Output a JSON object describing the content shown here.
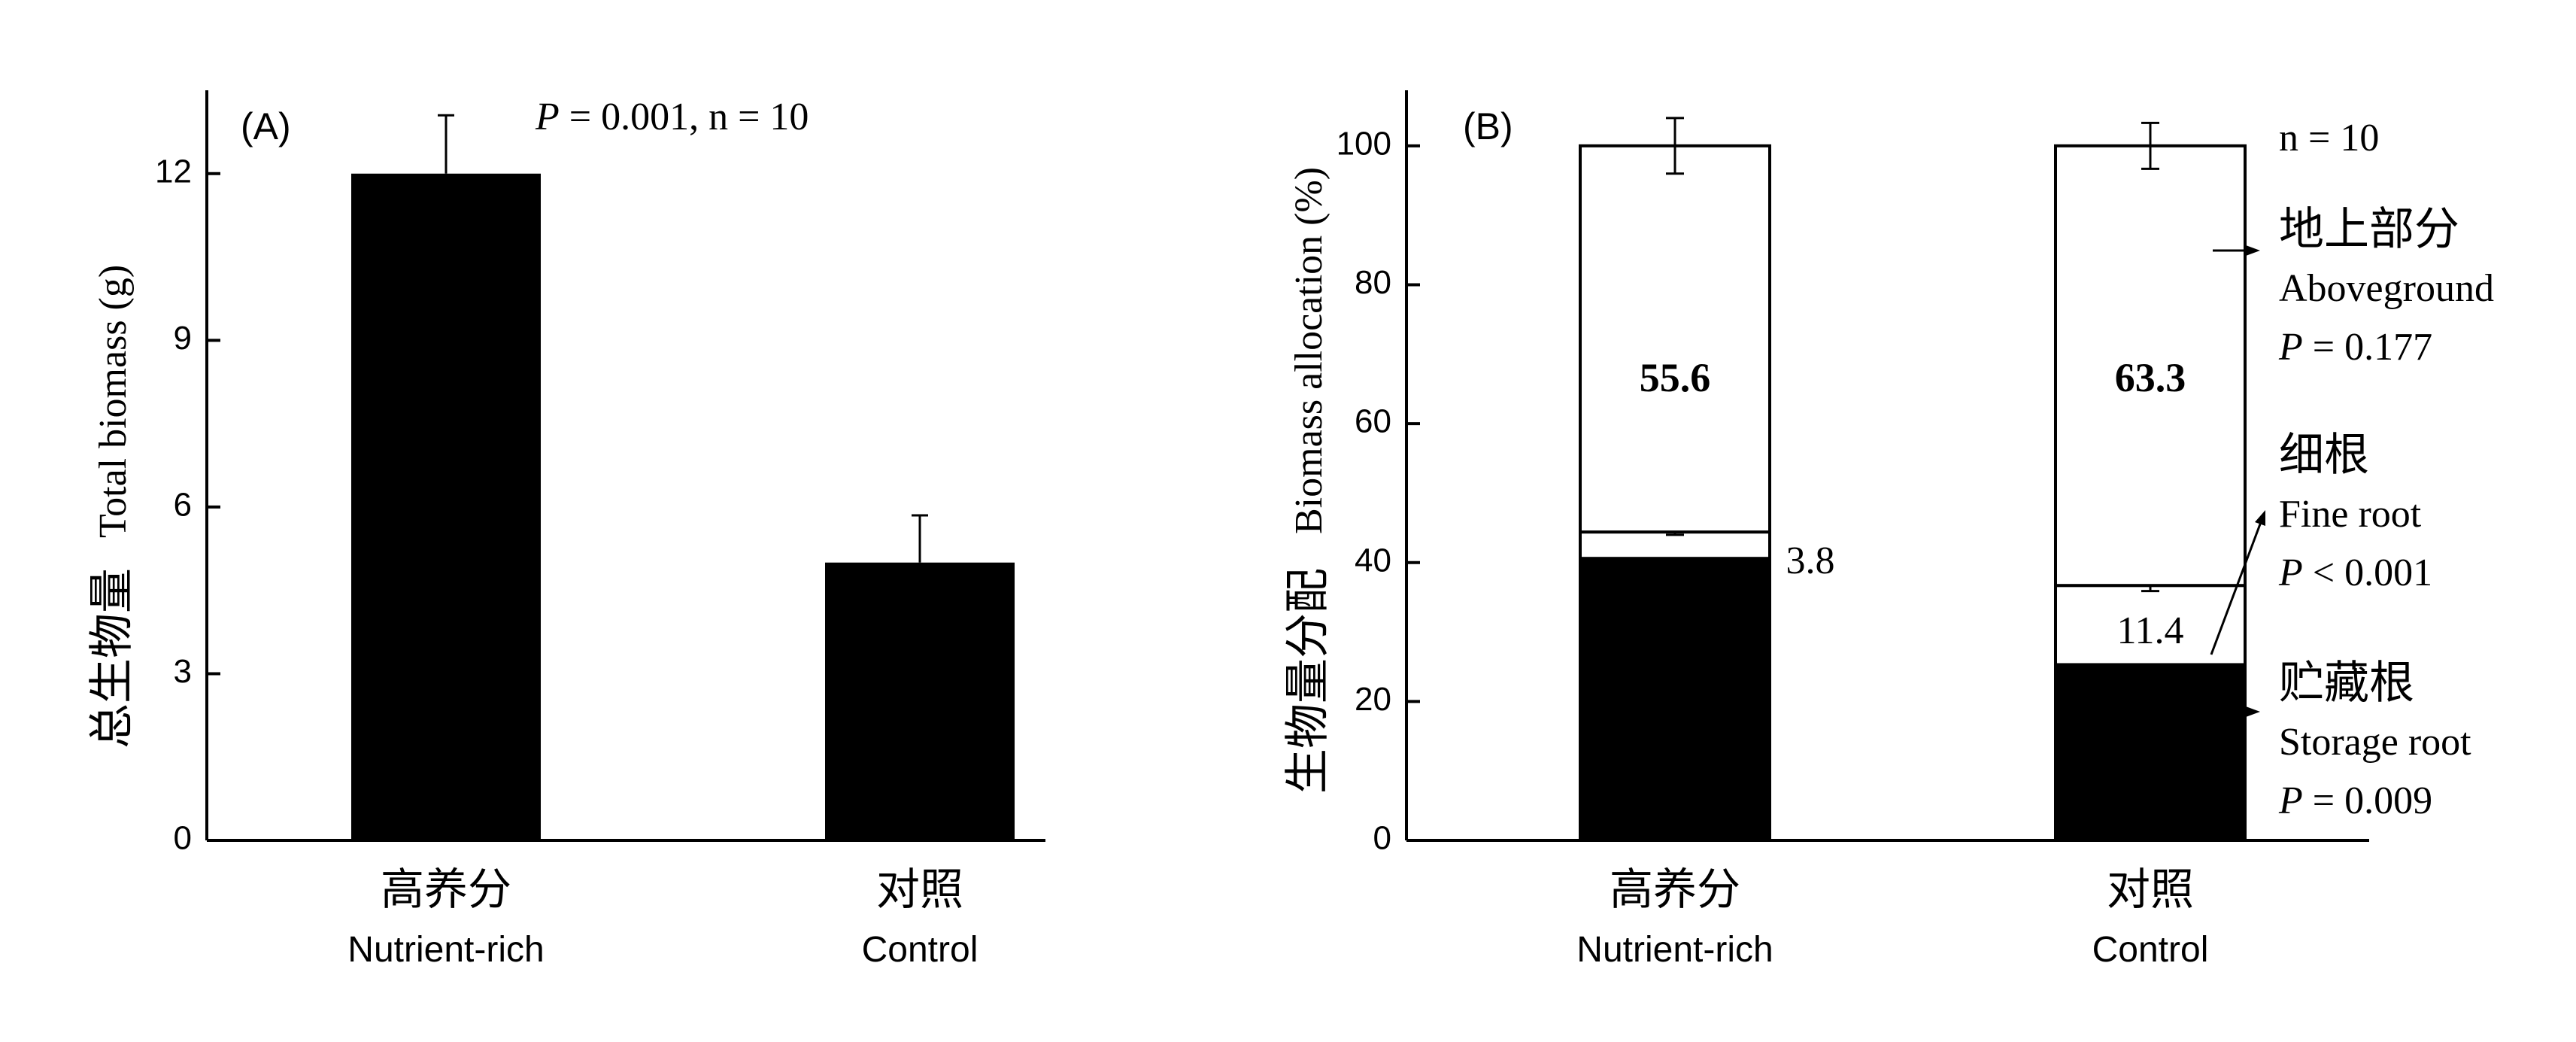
{
  "chart_data": [
    {
      "type": "bar",
      "panel_label": "(A)",
      "annotation_p_label": "P",
      "annotation_p_rest": " = 0.001, n = 10",
      "ylabel_cn": "总生物量",
      "ylabel_en": "Total biomass (g)",
      "ylim": [
        0,
        13.5
      ],
      "yticks": [
        "0",
        "3",
        "6",
        "9",
        "12"
      ],
      "categories": [
        {
          "cn": "高养分",
          "en": "Nutrient-rich"
        },
        {
          "cn": "对照",
          "en": "Control"
        }
      ],
      "values": [
        12.0,
        5.0
      ],
      "errors": [
        1.05,
        0.85
      ],
      "colors": {
        "bar": "#000000"
      }
    },
    {
      "type": "bar",
      "stacked": true,
      "panel_label": "(B)",
      "annotation_n": "n = 10",
      "ylabel_cn": "生物量分配",
      "ylabel_en": "Biomass allocation (%)",
      "ylim": [
        0,
        108
      ],
      "yticks": [
        "0",
        "20",
        "40",
        "60",
        "80",
        "100"
      ],
      "categories": [
        {
          "cn": "高养分",
          "en": "Nutrient-rich"
        },
        {
          "cn": "对照",
          "en": "Control"
        }
      ],
      "series": [
        {
          "key": "storage",
          "values": [
            40.6,
            25.3
          ],
          "errors": [
            3.0,
            2.5
          ],
          "fill": "#000000"
        },
        {
          "key": "fine",
          "values": [
            3.8,
            11.4
          ],
          "errors": [
            0.4,
            0.8
          ],
          "fill": "#ffffff"
        },
        {
          "key": "above",
          "values": [
            55.6,
            63.3
          ],
          "errors": [
            4.0,
            3.3
          ],
          "fill": "#ffffff"
        }
      ],
      "bar_labels": {
        "above": [
          "55.6",
          "63.3"
        ],
        "fine": [
          "3.8",
          "11.4"
        ]
      },
      "legend": {
        "above": {
          "cn": "地上部分",
          "en": "Aboveground",
          "p_label": "P",
          "p_rest": " = 0.177"
        },
        "fine": {
          "cn": "细根",
          "en": "Fine root",
          "p_label": "P",
          "p_rest": " < 0.001"
        },
        "storage": {
          "cn": "贮藏根",
          "en": "Storage root",
          "p_label": "P",
          "p_rest": " = 0.009"
        }
      }
    }
  ]
}
